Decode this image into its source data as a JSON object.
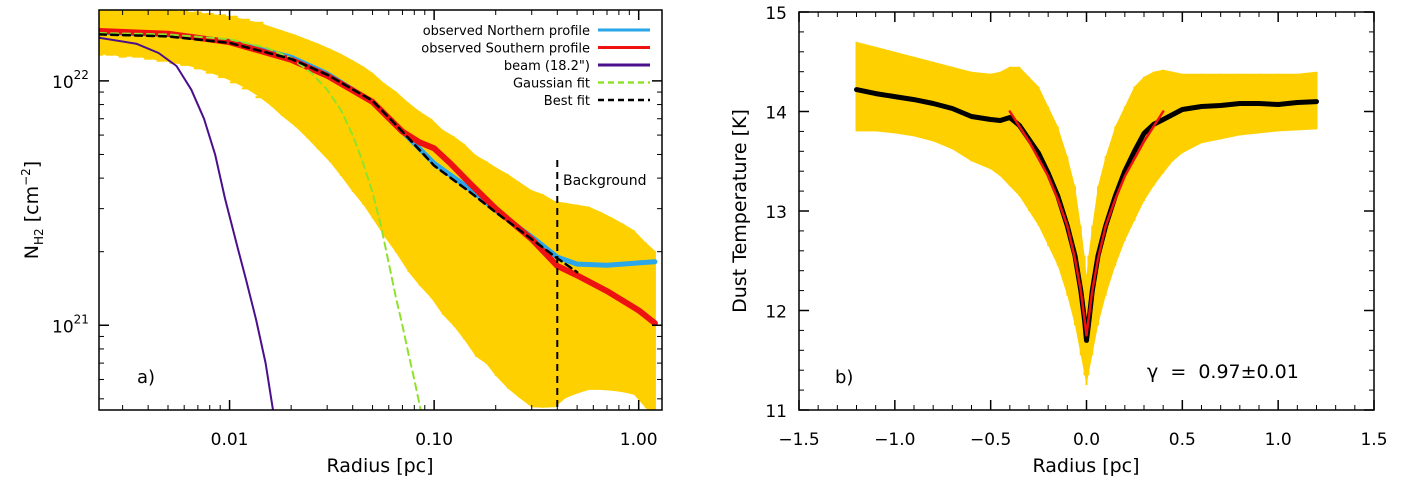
{
  "chart_data": [
    {
      "type": "line",
      "panel_label": "a)",
      "xlabel": "Radius [pc]",
      "ylabel_main": "N",
      "ylabel_sub": "H2",
      "ylabel_unit_open": " [cm",
      "ylabel_unit_exp": "−2",
      "ylabel_unit_close": "]",
      "xscale": "log",
      "yscale": "log",
      "xlim": [
        0.0023,
        1.3
      ],
      "ylim": [
        4.5e+20,
        1.95e+22
      ],
      "xticks": [
        {
          "value": 0.01,
          "label": "0.01"
        },
        {
          "value": 0.1,
          "label": "0.10"
        },
        {
          "value": 1.0,
          "label": "1.00"
        }
      ],
      "yticks": [
        {
          "value": 1e+21,
          "base": "10",
          "exp": "21"
        },
        {
          "value": 1e+22,
          "base": "10",
          "exp": "22"
        }
      ],
      "legend_position": "top-right",
      "background_line": {
        "x": 0.4,
        "label": "Background"
      },
      "series": [
        {
          "name": "observed Northern profile",
          "color": "#2aa6ea",
          "style": "solid",
          "width": 5,
          "x": [
            0.0023,
            0.005,
            0.01,
            0.02,
            0.03,
            0.05,
            0.07,
            0.1,
            0.15,
            0.2,
            0.3,
            0.4,
            0.5,
            0.7,
            1.0,
            1.2
          ],
          "y": [
            1.58e+22,
            1.55e+22,
            1.45e+22,
            1.25e+22,
            1.07e+22,
            8.2e+21,
            6.2e+21,
            4.6e+21,
            3.6e+21,
            2.95e+21,
            2.3e+21,
            1.9e+21,
            1.78e+21,
            1.76e+21,
            1.8e+21,
            1.82e+21
          ]
        },
        {
          "name": "observed Southern profile",
          "color": "#ee1111",
          "style": "solid",
          "width": 6,
          "x": [
            0.0023,
            0.005,
            0.01,
            0.02,
            0.03,
            0.05,
            0.07,
            0.085,
            0.1,
            0.12,
            0.15,
            0.2,
            0.3,
            0.4,
            0.5,
            0.7,
            1.0,
            1.2
          ],
          "y": [
            1.6e+22,
            1.56e+22,
            1.44e+22,
            1.22e+22,
            1.05e+22,
            8.2e+21,
            6.2e+21,
            5.6e+21,
            5.3e+21,
            4.6e+21,
            3.8e+21,
            3e+21,
            2.25e+21,
            1.75e+21,
            1.6e+21,
            1.38e+21,
            1.15e+21,
            1.02e+21
          ]
        },
        {
          "name": "beam (18.2\")",
          "color": "#4b0e8c",
          "style": "solid",
          "width": 2,
          "x": [
            0.0023,
            0.0035,
            0.0045,
            0.0055,
            0.0065,
            0.0075,
            0.0085,
            0.0095,
            0.011,
            0.012,
            0.0135,
            0.015,
            0.0163
          ],
          "y": [
            1.5e+22,
            1.42e+22,
            1.3e+22,
            1.15e+22,
            9.2e+21,
            7e+21,
            5e+21,
            3.3e+21,
            2.05e+21,
            1.55e+21,
            1.05e+21,
            7e+20,
            4.5e+20
          ]
        },
        {
          "name": "Gaussian fit",
          "color": "#8fe22b",
          "style": "dashed",
          "width": 2,
          "x": [
            0.0023,
            0.005,
            0.01,
            0.015,
            0.02,
            0.025,
            0.03,
            0.035,
            0.04,
            0.045,
            0.05,
            0.055,
            0.06,
            0.065,
            0.07,
            0.075,
            0.08,
            0.086
          ],
          "y": [
            1.57e+22,
            1.55e+22,
            1.48e+22,
            1.37e+22,
            1.24e+22,
            1.08e+22,
            9.2e+21,
            7.6e+21,
            6e+21,
            4.6e+21,
            3.5e+21,
            2.55e+21,
            1.8e+21,
            1.3e+21,
            1e+21,
            7.6e+20,
            6e+20,
            4.5e+20
          ]
        },
        {
          "name": "Best fit",
          "color": "#000000",
          "style": "dashed",
          "width": 2.5,
          "x": [
            0.0023,
            0.005,
            0.01,
            0.02,
            0.03,
            0.05,
            0.07,
            0.1,
            0.15,
            0.2,
            0.3,
            0.4,
            0.5
          ],
          "y": [
            1.55e+22,
            1.52e+22,
            1.43e+22,
            1.23e+22,
            1.06e+22,
            8.3e+21,
            6.2e+21,
            4.5e+21,
            3.5e+21,
            2.9e+21,
            2.25e+21,
            1.88e+21,
            1.65e+21
          ]
        }
      ],
      "errorbars": {
        "color": "#ffd000",
        "x": [
          0.0023,
          0.0026,
          0.003,
          0.0035,
          0.004,
          0.0046,
          0.0053,
          0.006,
          0.007,
          0.008,
          0.0092,
          0.0105,
          0.012,
          0.014,
          0.016,
          0.018,
          0.021,
          0.024,
          0.027,
          0.031,
          0.035,
          0.04,
          0.045,
          0.05,
          0.057,
          0.065,
          0.075,
          0.085,
          0.097,
          0.11,
          0.125,
          0.14,
          0.16,
          0.18,
          0.2,
          0.23,
          0.26,
          0.3,
          0.34,
          0.39,
          0.44,
          0.5,
          0.57,
          0.65,
          0.74,
          0.84,
          0.95,
          1.08,
          1.2
        ],
        "y": [
          1.58e+22,
          1.58e+22,
          1.57e+22,
          1.57e+22,
          1.56e+22,
          1.55e+22,
          1.54e+22,
          1.53e+22,
          1.5e+22,
          1.48e+22,
          1.46e+22,
          1.43e+22,
          1.39e+22,
          1.34e+22,
          1.29e+22,
          1.24e+22,
          1.18e+22,
          1.12e+22,
          1.07e+22,
          1.01e+22,
          9.5e+21,
          8.8e+21,
          8.2e+21,
          7.6e+21,
          6.8e+21,
          6.2e+21,
          5.5e+21,
          5e+21,
          4.6e+21,
          4.1e+21,
          3.8e+21,
          3.5e+21,
          3.1e+21,
          2.9e+21,
          2.7e+21,
          2.5e+21,
          2.3e+21,
          2.1e+21,
          2e+21,
          1.85e+21,
          1.8e+21,
          1.75e+21,
          1.7e+21,
          1.6e+21,
          1.5e+21,
          1.4e+21,
          1.3e+21,
          1.15e+21,
          1.05e+21
        ],
        "err_lo_frac": [
          0.19,
          0.19,
          0.2,
          0.2,
          0.21,
          0.22,
          0.23,
          0.24,
          0.25,
          0.27,
          0.29,
          0.31,
          0.33,
          0.36,
          0.39,
          0.42,
          0.45,
          0.48,
          0.51,
          0.54,
          0.57,
          0.6,
          0.62,
          0.64,
          0.66,
          0.68,
          0.7,
          0.71,
          0.72,
          0.73,
          0.74,
          0.75,
          0.76,
          0.76,
          0.77,
          0.78,
          0.78,
          0.78,
          0.77,
          0.75,
          0.72,
          0.7,
          0.68,
          0.66,
          0.64,
          0.62,
          0.6,
          0.6,
          0.6
        ],
        "err_hi_frac": [
          0.25,
          0.25,
          0.25,
          0.25,
          0.26,
          0.26,
          0.26,
          0.26,
          0.27,
          0.27,
          0.27,
          0.28,
          0.28,
          0.29,
          0.29,
          0.3,
          0.31,
          0.32,
          0.33,
          0.34,
          0.36,
          0.38,
          0.4,
          0.42,
          0.44,
          0.46,
          0.48,
          0.5,
          0.52,
          0.54,
          0.56,
          0.58,
          0.6,
          0.62,
          0.64,
          0.66,
          0.68,
          0.7,
          0.72,
          0.74,
          0.76,
          0.78,
          0.8,
          0.82,
          0.84,
          0.86,
          0.88,
          0.9,
          0.92
        ]
      }
    },
    {
      "type": "line",
      "panel_label": "b)",
      "xlabel": "Radius [pc]",
      "ylabel": "Dust Temperature [K]",
      "xscale": "linear",
      "yscale": "linear",
      "xlim": [
        -1.5,
        1.5
      ],
      "ylim": [
        11,
        15
      ],
      "xticks": [
        {
          "value": -1.5,
          "label": "−1.5"
        },
        {
          "value": -1.0,
          "label": "−1.0"
        },
        {
          "value": -0.5,
          "label": "−0.5"
        },
        {
          "value": 0.0,
          "label": "0.0"
        },
        {
          "value": 0.5,
          "label": "0.5"
        },
        {
          "value": 1.0,
          "label": "1.0"
        },
        {
          "value": 1.5,
          "label": "1.5"
        }
      ],
      "yticks": [
        {
          "value": 11,
          "label": "11"
        },
        {
          "value": 12,
          "label": "12"
        },
        {
          "value": 13,
          "label": "13"
        },
        {
          "value": 14,
          "label": "14"
        },
        {
          "value": 15,
          "label": "15"
        }
      ],
      "annotation": "γ  =  0.97±0.01",
      "series": [
        {
          "name": "",
          "color": "#000000",
          "style": "solid",
          "width": 5,
          "x": [
            -1.2,
            -1.1,
            -1.0,
            -0.9,
            -0.8,
            -0.7,
            -0.6,
            -0.5,
            -0.45,
            -0.4,
            -0.35,
            -0.3,
            -0.25,
            -0.2,
            -0.15,
            -0.1,
            -0.06,
            -0.03,
            -0.01,
            0.0,
            0.01,
            0.03,
            0.06,
            0.1,
            0.15,
            0.2,
            0.25,
            0.3,
            0.35,
            0.4,
            0.45,
            0.5,
            0.6,
            0.7,
            0.8,
            0.9,
            1.0,
            1.1,
            1.2
          ],
          "y": [
            14.22,
            14.18,
            14.15,
            14.12,
            14.08,
            14.03,
            13.95,
            13.92,
            13.91,
            13.94,
            13.86,
            13.72,
            13.58,
            13.38,
            13.15,
            12.85,
            12.55,
            12.2,
            11.9,
            11.7,
            11.85,
            12.2,
            12.55,
            12.85,
            13.15,
            13.4,
            13.6,
            13.78,
            13.87,
            13.92,
            13.97,
            14.02,
            14.05,
            14.06,
            14.08,
            14.08,
            14.07,
            14.09,
            14.1
          ]
        },
        {
          "name": "",
          "color": "#ee1111",
          "style": "solid",
          "width": 2.5,
          "x": [
            -0.4,
            -0.3,
            -0.2,
            -0.15,
            -0.1,
            -0.06,
            -0.03,
            -0.01,
            0.0,
            0.01,
            0.03,
            0.06,
            0.1,
            0.15,
            0.2,
            0.3,
            0.4
          ],
          "y": [
            14.0,
            13.7,
            13.35,
            13.12,
            12.85,
            12.52,
            12.2,
            11.9,
            11.75,
            11.9,
            12.2,
            12.52,
            12.85,
            13.12,
            13.35,
            13.7,
            14.0
          ]
        }
      ],
      "errorbars": {
        "color": "#ffd000",
        "x": [
          -1.2,
          -1.1,
          -1.0,
          -0.9,
          -0.8,
          -0.7,
          -0.6,
          -0.5,
          -0.45,
          -0.4,
          -0.35,
          -0.3,
          -0.25,
          -0.2,
          -0.15,
          -0.1,
          -0.06,
          -0.03,
          -0.01,
          0.0,
          0.01,
          0.03,
          0.06,
          0.1,
          0.15,
          0.2,
          0.25,
          0.3,
          0.35,
          0.4,
          0.45,
          0.5,
          0.6,
          0.7,
          0.8,
          0.9,
          1.0,
          1.1,
          1.2
        ],
        "lo": [
          13.8,
          13.8,
          13.78,
          13.75,
          13.7,
          13.62,
          13.5,
          13.42,
          13.35,
          13.25,
          13.15,
          13.0,
          12.85,
          12.65,
          12.45,
          12.15,
          11.85,
          11.55,
          11.35,
          11.25,
          11.35,
          11.55,
          11.85,
          12.15,
          12.45,
          12.7,
          12.9,
          13.1,
          13.25,
          13.38,
          13.5,
          13.58,
          13.68,
          13.72,
          13.76,
          13.78,
          13.8,
          13.81,
          13.82
        ],
        "hi": [
          14.7,
          14.65,
          14.6,
          14.55,
          14.5,
          14.45,
          14.4,
          14.38,
          14.4,
          14.45,
          14.45,
          14.35,
          14.25,
          14.05,
          13.85,
          13.55,
          13.25,
          12.85,
          12.55,
          12.35,
          12.55,
          12.85,
          13.25,
          13.55,
          13.85,
          14.05,
          14.25,
          14.35,
          14.4,
          14.42,
          14.4,
          14.38,
          14.38,
          14.38,
          14.38,
          14.38,
          14.38,
          14.38,
          14.4
        ]
      }
    }
  ]
}
